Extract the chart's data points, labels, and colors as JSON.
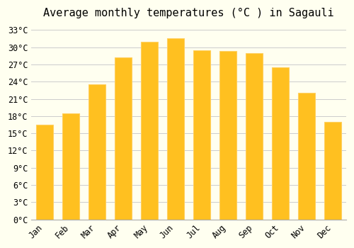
{
  "title": "Average monthly temperatures (°C ) in Sagauli",
  "months": [
    "Jan",
    "Feb",
    "Mar",
    "Apr",
    "May",
    "Jun",
    "Jul",
    "Aug",
    "Sep",
    "Oct",
    "Nov",
    "Dec"
  ],
  "values": [
    16.5,
    18.5,
    23.5,
    28.2,
    31.0,
    31.5,
    29.5,
    29.4,
    29.0,
    26.5,
    22.0,
    17.0
  ],
  "bar_color_face": "#FFC020",
  "bar_color_edge": "#FFD060",
  "background_color": "#FFFFF0",
  "grid_color": "#CCCCCC",
  "ylim": [
    0,
    34
  ],
  "yticks": [
    0,
    3,
    6,
    9,
    12,
    15,
    18,
    21,
    24,
    27,
    30,
    33
  ],
  "ytick_labels": [
    "0°C",
    "3°C",
    "6°C",
    "9°C",
    "12°C",
    "15°C",
    "18°C",
    "21°C",
    "24°C",
    "27°C",
    "30°C",
    "33°C"
  ],
  "title_fontsize": 11,
  "tick_fontsize": 8.5,
  "font_family": "monospace"
}
